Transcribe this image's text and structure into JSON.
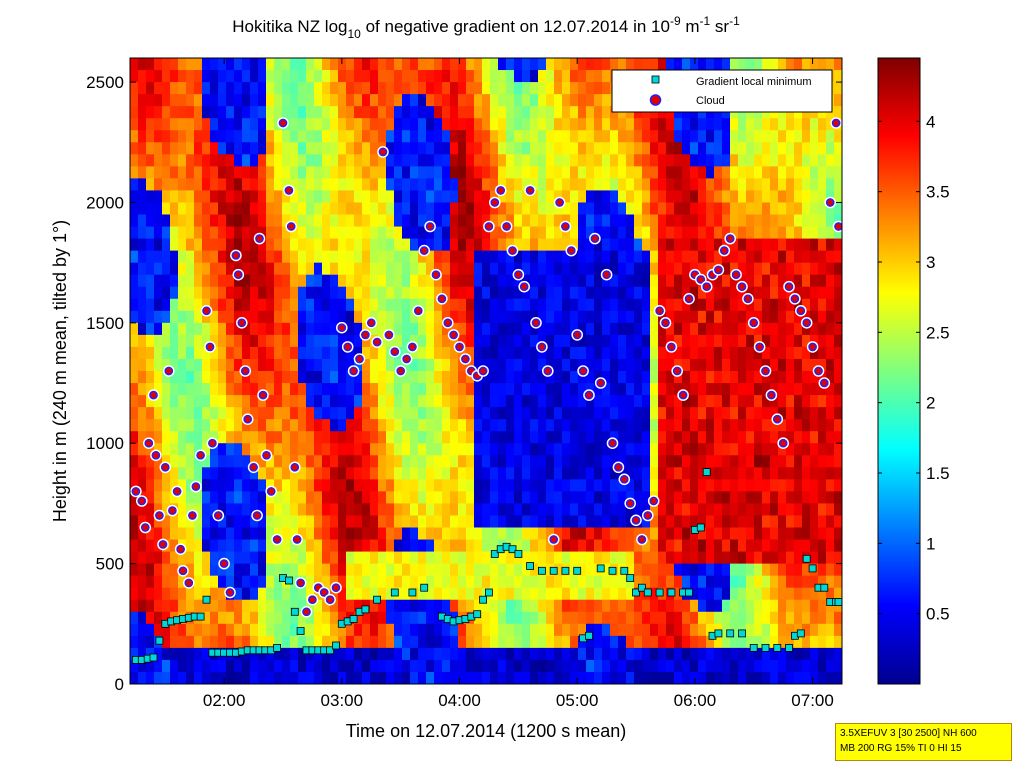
{
  "chart_data": {
    "type": "heatmap",
    "title": {
      "prefix": "Hokitika NZ log",
      "sub": "10",
      "middle": " of negative gradient on 12.07.2014 in 10",
      "sup1": "-9",
      "unit1": " m",
      "sup2": "-1",
      "unit2": " sr",
      "sup3": "-1"
    },
    "xlabel": "Time on 12.07.2014 (1200 s mean)",
    "ylabel": "Height in m (240 m mean, tilted by 1°)",
    "xlim": [
      1.2,
      7.25
    ],
    "ylim": [
      0,
      2600
    ],
    "x_ticks": [
      {
        "value": 2,
        "label": "02:00"
      },
      {
        "value": 3,
        "label": "03:00"
      },
      {
        "value": 4,
        "label": "04:00"
      },
      {
        "value": 5,
        "label": "05:00"
      },
      {
        "value": 6,
        "label": "06:00"
      },
      {
        "value": 7,
        "label": "07:00"
      }
    ],
    "y_ticks": [
      0,
      500,
      1000,
      1500,
      2000,
      2500
    ],
    "colorbar": {
      "range": [
        0,
        4.45
      ],
      "ticks": [
        "0.5",
        "1",
        "1.5",
        "2",
        "2.5",
        "3",
        "3.5",
        "4"
      ],
      "tick_values": [
        0.5,
        1,
        1.5,
        2,
        2.5,
        3,
        3.5,
        4
      ],
      "colormap": "jet"
    },
    "legend": {
      "placement": "top-right",
      "entries": [
        {
          "label": "Gradient local minimum",
          "marker": "square",
          "color": "#00d8d8"
        },
        {
          "label": "Cloud",
          "marker": "circle",
          "color": "#e00000"
        }
      ]
    },
    "series": [
      {
        "name": "Gradient local minimum",
        "points": [
          [
            1.25,
            100
          ],
          [
            1.3,
            100
          ],
          [
            1.35,
            105
          ],
          [
            1.4,
            110
          ],
          [
            1.45,
            180
          ],
          [
            1.5,
            250
          ],
          [
            1.55,
            260
          ],
          [
            1.6,
            265
          ],
          [
            1.65,
            270
          ],
          [
            1.7,
            275
          ],
          [
            1.75,
            280
          ],
          [
            1.8,
            280
          ],
          [
            1.85,
            350
          ],
          [
            1.9,
            130
          ],
          [
            1.95,
            130
          ],
          [
            2.0,
            130
          ],
          [
            2.05,
            130
          ],
          [
            2.1,
            130
          ],
          [
            2.15,
            135
          ],
          [
            2.2,
            140
          ],
          [
            2.25,
            140
          ],
          [
            2.3,
            140
          ],
          [
            2.35,
            140
          ],
          [
            2.4,
            140
          ],
          [
            2.45,
            150
          ],
          [
            2.5,
            440
          ],
          [
            2.55,
            430
          ],
          [
            2.6,
            300
          ],
          [
            2.65,
            220
          ],
          [
            2.7,
            140
          ],
          [
            2.75,
            140
          ],
          [
            2.8,
            140
          ],
          [
            2.85,
            140
          ],
          [
            2.9,
            140
          ],
          [
            2.95,
            160
          ],
          [
            3.0,
            250
          ],
          [
            3.05,
            260
          ],
          [
            3.1,
            270
          ],
          [
            3.15,
            300
          ],
          [
            3.2,
            310
          ],
          [
            3.3,
            350
          ],
          [
            3.45,
            380
          ],
          [
            3.6,
            380
          ],
          [
            3.7,
            400
          ],
          [
            3.85,
            280
          ],
          [
            3.9,
            270
          ],
          [
            3.95,
            260
          ],
          [
            4.0,
            265
          ],
          [
            4.05,
            270
          ],
          [
            4.1,
            280
          ],
          [
            4.15,
            290
          ],
          [
            4.2,
            350
          ],
          [
            4.25,
            380
          ],
          [
            4.3,
            540
          ],
          [
            4.35,
            560
          ],
          [
            4.4,
            570
          ],
          [
            4.45,
            560
          ],
          [
            4.5,
            540
          ],
          [
            4.6,
            490
          ],
          [
            4.7,
            470
          ],
          [
            4.8,
            470
          ],
          [
            4.9,
            470
          ],
          [
            5.0,
            470
          ],
          [
            5.05,
            190
          ],
          [
            5.1,
            200
          ],
          [
            5.2,
            480
          ],
          [
            5.3,
            470
          ],
          [
            5.4,
            470
          ],
          [
            5.45,
            440
          ],
          [
            5.5,
            380
          ],
          [
            5.55,
            400
          ],
          [
            5.6,
            380
          ],
          [
            5.7,
            380
          ],
          [
            5.8,
            380
          ],
          [
            5.9,
            380
          ],
          [
            5.95,
            380
          ],
          [
            6.0,
            640
          ],
          [
            6.05,
            650
          ],
          [
            6.1,
            880
          ],
          [
            6.15,
            200
          ],
          [
            6.2,
            210
          ],
          [
            6.3,
            210
          ],
          [
            6.4,
            210
          ],
          [
            6.5,
            150
          ],
          [
            6.6,
            150
          ],
          [
            6.7,
            150
          ],
          [
            6.8,
            150
          ],
          [
            6.85,
            200
          ],
          [
            6.9,
            210
          ],
          [
            6.95,
            520
          ],
          [
            7.0,
            480
          ],
          [
            7.05,
            400
          ],
          [
            7.1,
            400
          ],
          [
            7.15,
            340
          ],
          [
            7.2,
            340
          ],
          [
            7.22,
            340
          ]
        ]
      },
      {
        "name": "Cloud",
        "points": [
          [
            1.25,
            800
          ],
          [
            1.3,
            760
          ],
          [
            1.33,
            650
          ],
          [
            1.36,
            1000
          ],
          [
            1.4,
            1200
          ],
          [
            1.42,
            950
          ],
          [
            1.45,
            700
          ],
          [
            1.48,
            580
          ],
          [
            1.5,
            900
          ],
          [
            1.53,
            1300
          ],
          [
            1.56,
            720
          ],
          [
            1.6,
            800
          ],
          [
            1.63,
            560
          ],
          [
            1.65,
            470
          ],
          [
            1.7,
            420
          ],
          [
            1.73,
            700
          ],
          [
            1.76,
            820
          ],
          [
            1.8,
            950
          ],
          [
            1.85,
            1550
          ],
          [
            1.88,
            1400
          ],
          [
            1.9,
            1000
          ],
          [
            1.95,
            700
          ],
          [
            2.0,
            500
          ],
          [
            2.05,
            380
          ],
          [
            2.1,
            1780
          ],
          [
            2.12,
            1700
          ],
          [
            2.15,
            1500
          ],
          [
            2.18,
            1300
          ],
          [
            2.2,
            1100
          ],
          [
            2.25,
            900
          ],
          [
            2.28,
            700
          ],
          [
            2.3,
            1850
          ],
          [
            2.33,
            1200
          ],
          [
            2.36,
            950
          ],
          [
            2.4,
            800
          ],
          [
            2.45,
            600
          ],
          [
            2.5,
            2330
          ],
          [
            2.55,
            2050
          ],
          [
            2.57,
            1900
          ],
          [
            2.6,
            900
          ],
          [
            2.62,
            600
          ],
          [
            2.65,
            420
          ],
          [
            2.7,
            300
          ],
          [
            2.75,
            350
          ],
          [
            2.8,
            400
          ],
          [
            2.85,
            380
          ],
          [
            2.9,
            350
          ],
          [
            2.95,
            400
          ],
          [
            3.0,
            1480
          ],
          [
            3.05,
            1400
          ],
          [
            3.1,
            1300
          ],
          [
            3.15,
            1350
          ],
          [
            3.2,
            1450
          ],
          [
            3.25,
            1500
          ],
          [
            3.3,
            1420
          ],
          [
            3.35,
            2210
          ],
          [
            3.4,
            1450
          ],
          [
            3.45,
            1380
          ],
          [
            3.5,
            1300
          ],
          [
            3.55,
            1350
          ],
          [
            3.6,
            1400
          ],
          [
            3.65,
            1550
          ],
          [
            3.7,
            1800
          ],
          [
            3.75,
            1900
          ],
          [
            3.8,
            1700
          ],
          [
            3.85,
            1600
          ],
          [
            3.9,
            1500
          ],
          [
            3.95,
            1450
          ],
          [
            4.0,
            1400
          ],
          [
            4.05,
            1350
          ],
          [
            4.1,
            1300
          ],
          [
            4.15,
            1280
          ],
          [
            4.2,
            1300
          ],
          [
            4.25,
            1900
          ],
          [
            4.3,
            2000
          ],
          [
            4.35,
            2050
          ],
          [
            4.4,
            1900
          ],
          [
            4.45,
            1800
          ],
          [
            4.5,
            1700
          ],
          [
            4.55,
            1650
          ],
          [
            4.6,
            2050
          ],
          [
            4.65,
            1500
          ],
          [
            4.7,
            1400
          ],
          [
            4.75,
            1300
          ],
          [
            4.8,
            600
          ],
          [
            4.85,
            2000
          ],
          [
            4.9,
            1900
          ],
          [
            4.95,
            1800
          ],
          [
            5.0,
            1450
          ],
          [
            5.05,
            1300
          ],
          [
            5.1,
            1200
          ],
          [
            5.15,
            1850
          ],
          [
            5.2,
            1250
          ],
          [
            5.25,
            1700
          ],
          [
            5.3,
            1000
          ],
          [
            5.35,
            900
          ],
          [
            5.4,
            850
          ],
          [
            5.45,
            750
          ],
          [
            5.5,
            680
          ],
          [
            5.55,
            600
          ],
          [
            5.6,
            700
          ],
          [
            5.65,
            760
          ],
          [
            5.7,
            1550
          ],
          [
            5.75,
            1500
          ],
          [
            5.8,
            1400
          ],
          [
            5.85,
            1300
          ],
          [
            5.9,
            1200
          ],
          [
            5.95,
            1600
          ],
          [
            6.0,
            1700
          ],
          [
            6.05,
            1680
          ],
          [
            6.1,
            1650
          ],
          [
            6.15,
            1700
          ],
          [
            6.2,
            1720
          ],
          [
            6.25,
            1800
          ],
          [
            6.3,
            1850
          ],
          [
            6.35,
            1700
          ],
          [
            6.4,
            1650
          ],
          [
            6.45,
            1600
          ],
          [
            6.5,
            1500
          ],
          [
            6.55,
            1400
          ],
          [
            6.6,
            1300
          ],
          [
            6.65,
            1200
          ],
          [
            6.7,
            1100
          ],
          [
            6.75,
            1000
          ],
          [
            6.8,
            1650
          ],
          [
            6.85,
            1600
          ],
          [
            6.9,
            1550
          ],
          [
            6.95,
            1500
          ],
          [
            7.0,
            1400
          ],
          [
            7.05,
            1300
          ],
          [
            7.1,
            1250
          ],
          [
            7.15,
            2000
          ],
          [
            7.2,
            2330
          ],
          [
            7.22,
            1900
          ]
        ]
      }
    ]
  },
  "info_box": {
    "line1": "3.5XEFUV 3 [30 2500] NH 600",
    "line2": "MB 200 RG 15% TI 0 HI 15"
  }
}
